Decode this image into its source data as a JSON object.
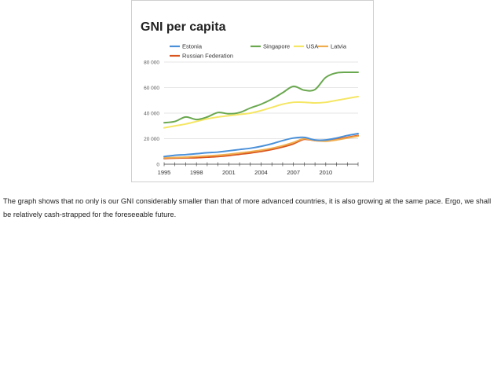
{
  "chart_data": {
    "type": "line",
    "title": "GNI per capita",
    "xlabel": "",
    "ylabel": "",
    "xlim": [
      1995,
      2013
    ],
    "ylim": [
      0,
      80000
    ],
    "grid": true,
    "legend_position": "top",
    "x_ticks": [
      "1995",
      "1998",
      "2001",
      "2004",
      "2007",
      "2010"
    ],
    "x_tick_values": [
      1995,
      1998,
      2001,
      2004,
      2007,
      2010
    ],
    "y_ticks": [
      "0",
      "20 000",
      "40 000",
      "60 000",
      "80 000"
    ],
    "y_tick_values": [
      0,
      20000,
      40000,
      60000,
      80000
    ],
    "x": [
      1995,
      1996,
      1997,
      1998,
      1999,
      2000,
      2001,
      2002,
      2003,
      2004,
      2005,
      2006,
      2007,
      2008,
      2009,
      2010,
      2011,
      2012,
      2013
    ],
    "series": [
      {
        "name": "Estonia",
        "color": "#4a90d9",
        "values": [
          6000,
          7000,
          7500,
          8200,
          9000,
          9500,
          10500,
          11500,
          12500,
          14000,
          16000,
          18500,
          20500,
          21000,
          19000,
          19000,
          20500,
          22500,
          24000
        ]
      },
      {
        "name": "Singapore",
        "color": "#6aa84f",
        "values": [
          32500,
          33500,
          37000,
          35000,
          37000,
          40500,
          39500,
          40500,
          44000,
          47000,
          51000,
          56000,
          61000,
          58000,
          58500,
          68000,
          71500,
          72000,
          72000
        ]
      },
      {
        "name": "USA",
        "color": "#f5e663",
        "values": [
          28500,
          30000,
          31500,
          33500,
          35500,
          37000,
          38000,
          39000,
          40000,
          42000,
          44500,
          47000,
          48500,
          48500,
          48000,
          48500,
          50000,
          51500,
          53000
        ]
      },
      {
        "name": "Latvia",
        "color": "#f0ad4e",
        "values": [
          5000,
          5200,
          5500,
          6000,
          6500,
          7000,
          7800,
          8800,
          9800,
          11000,
          12500,
          14500,
          17000,
          20000,
          18500,
          18000,
          19000,
          20500,
          22000
        ]
      },
      {
        "name": "Russian Federation",
        "color": "#d9541e",
        "values": [
          4500,
          4800,
          5000,
          5100,
          5500,
          6000,
          6800,
          7800,
          8800,
          10000,
          11500,
          13500,
          16000,
          19500,
          18500,
          18500,
          19500,
          21000,
          22500
        ]
      }
    ]
  },
  "caption": {
    "text": "The graph shows that no only is our GNI considerably smaller than that of more advanced countries, it is also growing at the same pace. Ergo, we shall be relatively cash-strapped for the foreseeable future."
  }
}
